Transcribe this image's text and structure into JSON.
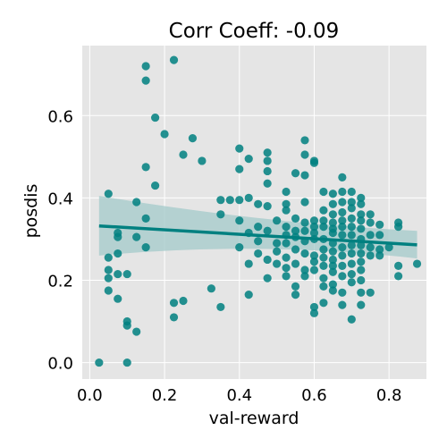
{
  "chart_data": {
    "type": "scatter",
    "title": "Corr Coeff: -0.09",
    "xlabel": "val-reward",
    "ylabel": "posdis",
    "xlim": [
      -0.02,
      0.9
    ],
    "ylim": [
      -0.04,
      0.77
    ],
    "xticks": [
      0.0,
      0.2,
      0.4,
      0.6,
      0.8
    ],
    "xtick_labels": [
      "0.0",
      "0.2",
      "0.4",
      "0.6",
      "0.8"
    ],
    "yticks": [
      0.0,
      0.2,
      0.4,
      0.6
    ],
    "ytick_labels": [
      "0.0",
      "0.2",
      "0.4",
      "0.6"
    ],
    "grid": true,
    "colors": {
      "background": "#e5e5e5",
      "grid": "#ffffff",
      "point": "#008080",
      "line": "#008080",
      "band": "#a3c9c9"
    },
    "regression": {
      "x_start": 0.025,
      "y_start": 0.332,
      "x_end": 0.875,
      "y_end": 0.286,
      "ci_upper_start": 0.405,
      "ci_upper_mid": 0.34,
      "ci_upper_end": 0.32,
      "ci_lower_start": 0.26,
      "ci_lower_mid": 0.296,
      "ci_lower_end": 0.253
    },
    "points": [
      [
        0.025,
        0.0
      ],
      [
        0.05,
        0.41
      ],
      [
        0.05,
        0.255
      ],
      [
        0.05,
        0.225
      ],
      [
        0.05,
        0.205
      ],
      [
        0.05,
        0.175
      ],
      [
        0.075,
        0.315
      ],
      [
        0.075,
        0.305
      ],
      [
        0.075,
        0.265
      ],
      [
        0.075,
        0.215
      ],
      [
        0.075,
        0.155
      ],
      [
        0.1,
        0.215
      ],
      [
        0.1,
        0.1
      ],
      [
        0.1,
        0.09
      ],
      [
        0.1,
        0.0
      ],
      [
        0.125,
        0.39
      ],
      [
        0.125,
        0.305
      ],
      [
        0.125,
        0.075
      ],
      [
        0.15,
        0.72
      ],
      [
        0.15,
        0.685
      ],
      [
        0.15,
        0.475
      ],
      [
        0.15,
        0.35
      ],
      [
        0.15,
        0.28
      ],
      [
        0.175,
        0.595
      ],
      [
        0.175,
        0.43
      ],
      [
        0.2,
        0.555
      ],
      [
        0.225,
        0.735
      ],
      [
        0.225,
        0.145
      ],
      [
        0.225,
        0.11
      ],
      [
        0.25,
        0.505
      ],
      [
        0.25,
        0.15
      ],
      [
        0.275,
        0.545
      ],
      [
        0.3,
        0.49
      ],
      [
        0.325,
        0.18
      ],
      [
        0.35,
        0.395
      ],
      [
        0.35,
        0.36
      ],
      [
        0.35,
        0.135
      ],
      [
        0.375,
        0.395
      ],
      [
        0.4,
        0.52
      ],
      [
        0.4,
        0.47
      ],
      [
        0.4,
        0.395
      ],
      [
        0.4,
        0.345
      ],
      [
        0.4,
        0.28
      ],
      [
        0.425,
        0.495
      ],
      [
        0.425,
        0.4
      ],
      [
        0.425,
        0.315
      ],
      [
        0.425,
        0.24
      ],
      [
        0.425,
        0.165
      ],
      [
        0.45,
        0.385
      ],
      [
        0.45,
        0.33
      ],
      [
        0.45,
        0.295
      ],
      [
        0.45,
        0.265
      ],
      [
        0.475,
        0.51
      ],
      [
        0.475,
        0.49
      ],
      [
        0.475,
        0.465
      ],
      [
        0.475,
        0.435
      ],
      [
        0.475,
        0.38
      ],
      [
        0.475,
        0.32
      ],
      [
        0.475,
        0.25
      ],
      [
        0.475,
        0.205
      ],
      [
        0.5,
        0.345
      ],
      [
        0.5,
        0.29
      ],
      [
        0.5,
        0.27
      ],
      [
        0.5,
        0.24
      ],
      [
        0.525,
        0.415
      ],
      [
        0.525,
        0.385
      ],
      [
        0.525,
        0.37
      ],
      [
        0.525,
        0.33
      ],
      [
        0.525,
        0.31
      ],
      [
        0.525,
        0.29
      ],
      [
        0.525,
        0.255
      ],
      [
        0.525,
        0.23
      ],
      [
        0.525,
        0.21
      ],
      [
        0.55,
        0.46
      ],
      [
        0.55,
        0.35
      ],
      [
        0.55,
        0.32
      ],
      [
        0.55,
        0.305
      ],
      [
        0.55,
        0.275
      ],
      [
        0.55,
        0.24
      ],
      [
        0.55,
        0.185
      ],
      [
        0.55,
        0.165
      ],
      [
        0.575,
        0.54
      ],
      [
        0.575,
        0.505
      ],
      [
        0.575,
        0.455
      ],
      [
        0.575,
        0.39
      ],
      [
        0.575,
        0.34
      ],
      [
        0.575,
        0.32
      ],
      [
        0.575,
        0.295
      ],
      [
        0.575,
        0.265
      ],
      [
        0.575,
        0.225
      ],
      [
        0.575,
        0.21
      ],
      [
        0.6,
        0.49
      ],
      [
        0.6,
        0.485
      ],
      [
        0.6,
        0.345
      ],
      [
        0.6,
        0.33
      ],
      [
        0.6,
        0.315
      ],
      [
        0.6,
        0.3
      ],
      [
        0.6,
        0.26
      ],
      [
        0.6,
        0.245
      ],
      [
        0.6,
        0.225
      ],
      [
        0.6,
        0.135
      ],
      [
        0.6,
        0.12
      ],
      [
        0.625,
        0.415
      ],
      [
        0.625,
        0.37
      ],
      [
        0.625,
        0.345
      ],
      [
        0.625,
        0.33
      ],
      [
        0.625,
        0.3
      ],
      [
        0.625,
        0.275
      ],
      [
        0.625,
        0.255
      ],
      [
        0.625,
        0.235
      ],
      [
        0.625,
        0.205
      ],
      [
        0.625,
        0.185
      ],
      [
        0.625,
        0.145
      ],
      [
        0.65,
        0.41
      ],
      [
        0.65,
        0.385
      ],
      [
        0.65,
        0.36
      ],
      [
        0.65,
        0.34
      ],
      [
        0.65,
        0.325
      ],
      [
        0.65,
        0.315
      ],
      [
        0.65,
        0.29
      ],
      [
        0.65,
        0.27
      ],
      [
        0.65,
        0.25
      ],
      [
        0.65,
        0.235
      ],
      [
        0.65,
        0.22
      ],
      [
        0.65,
        0.19
      ],
      [
        0.65,
        0.175
      ],
      [
        0.675,
        0.45
      ],
      [
        0.675,
        0.415
      ],
      [
        0.675,
        0.39
      ],
      [
        0.675,
        0.365
      ],
      [
        0.675,
        0.345
      ],
      [
        0.675,
        0.33
      ],
      [
        0.675,
        0.31
      ],
      [
        0.675,
        0.28
      ],
      [
        0.675,
        0.26
      ],
      [
        0.675,
        0.235
      ],
      [
        0.675,
        0.21
      ],
      [
        0.675,
        0.17
      ],
      [
        0.675,
        0.14
      ],
      [
        0.7,
        0.415
      ],
      [
        0.7,
        0.39
      ],
      [
        0.7,
        0.375
      ],
      [
        0.7,
        0.35
      ],
      [
        0.7,
        0.33
      ],
      [
        0.7,
        0.31
      ],
      [
        0.7,
        0.285
      ],
      [
        0.7,
        0.265
      ],
      [
        0.7,
        0.24
      ],
      [
        0.7,
        0.215
      ],
      [
        0.7,
        0.195
      ],
      [
        0.7,
        0.105
      ],
      [
        0.725,
        0.4
      ],
      [
        0.725,
        0.385
      ],
      [
        0.725,
        0.36
      ],
      [
        0.725,
        0.345
      ],
      [
        0.725,
        0.325
      ],
      [
        0.725,
        0.3
      ],
      [
        0.725,
        0.285
      ],
      [
        0.725,
        0.265
      ],
      [
        0.725,
        0.245
      ],
      [
        0.725,
        0.225
      ],
      [
        0.725,
        0.2
      ],
      [
        0.725,
        0.17
      ],
      [
        0.725,
        0.14
      ],
      [
        0.75,
        0.36
      ],
      [
        0.75,
        0.34
      ],
      [
        0.75,
        0.31
      ],
      [
        0.75,
        0.28
      ],
      [
        0.75,
        0.26
      ],
      [
        0.75,
        0.17
      ],
      [
        0.775,
        0.335
      ],
      [
        0.775,
        0.31
      ],
      [
        0.775,
        0.275
      ],
      [
        0.775,
        0.26
      ],
      [
        0.8,
        0.28
      ],
      [
        0.825,
        0.34
      ],
      [
        0.825,
        0.33
      ],
      [
        0.825,
        0.235
      ],
      [
        0.825,
        0.21
      ],
      [
        0.875,
        0.24
      ]
    ]
  }
}
